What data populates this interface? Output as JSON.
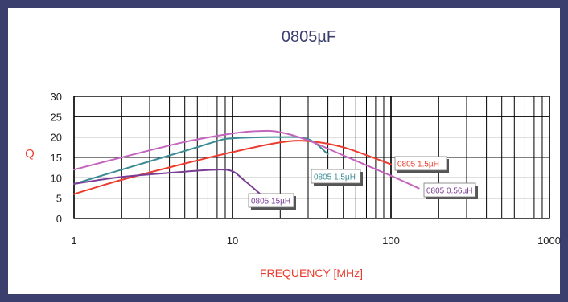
{
  "chart_data": {
    "type": "line",
    "title": "0805µF",
    "xlabel": "FREQUENCY [MHz]",
    "ylabel": "Q",
    "xscale": "log",
    "xlim": [
      1,
      1000
    ],
    "ylim": [
      0,
      30
    ],
    "grid": true,
    "x_ticks": [
      {
        "value": 1,
        "label": "1"
      },
      {
        "value": 10,
        "label": "10"
      },
      {
        "value": 100,
        "label": "100"
      },
      {
        "value": 1000,
        "label": "1000"
      }
    ],
    "y_ticks": [
      {
        "value": 0,
        "label": "0"
      },
      {
        "value": 5,
        "label": "5"
      },
      {
        "value": 10,
        "label": "10"
      },
      {
        "value": 15,
        "label": "15"
      },
      {
        "value": 20,
        "label": "20"
      },
      {
        "value": 25,
        "label": "25"
      },
      {
        "value": 30,
        "label": "30"
      }
    ],
    "series": [
      {
        "name": "0805 1.5µH",
        "color": "#ec3c2e",
        "x": [
          1,
          2,
          5,
          10,
          20,
          30,
          50,
          100
        ],
        "y": [
          6,
          9.5,
          13.5,
          16.3,
          18.7,
          19,
          17.5,
          13.3
        ]
      },
      {
        "name": "0805 1.5µH",
        "color": "#3a8b94",
        "x": [
          1,
          2,
          5,
          8,
          10,
          20,
          30,
          40
        ],
        "y": [
          8.5,
          12,
          16.6,
          19,
          19.7,
          20,
          19.5,
          15.8
        ]
      },
      {
        "name": "0805 0.56µH",
        "color": "#c465bd",
        "x": [
          1,
          2,
          5,
          10,
          15,
          20,
          30,
          50,
          100,
          150
        ],
        "y": [
          12,
          15,
          18.8,
          20.9,
          21.5,
          21.2,
          19.2,
          15.5,
          10.5,
          7.4
        ]
      },
      {
        "name": "0805 15µH",
        "color": "#7a3d96",
        "x": [
          1,
          2,
          5,
          8,
          10,
          12,
          15
        ],
        "y": [
          8.5,
          10.2,
          11.5,
          12,
          11.6,
          9.2,
          6
        ]
      }
    ],
    "annotations": [
      {
        "text": "0805 1.5µH",
        "series": 0,
        "color": "#ec3c2e"
      },
      {
        "text": "0805 1.5µH",
        "series": 1,
        "color": "#3a8b94"
      },
      {
        "text": "0805 0.56µH",
        "series": 2,
        "color": "#7a3d96"
      },
      {
        "text": "0805 15µH",
        "series": 3,
        "color": "#7a3d96"
      }
    ]
  }
}
